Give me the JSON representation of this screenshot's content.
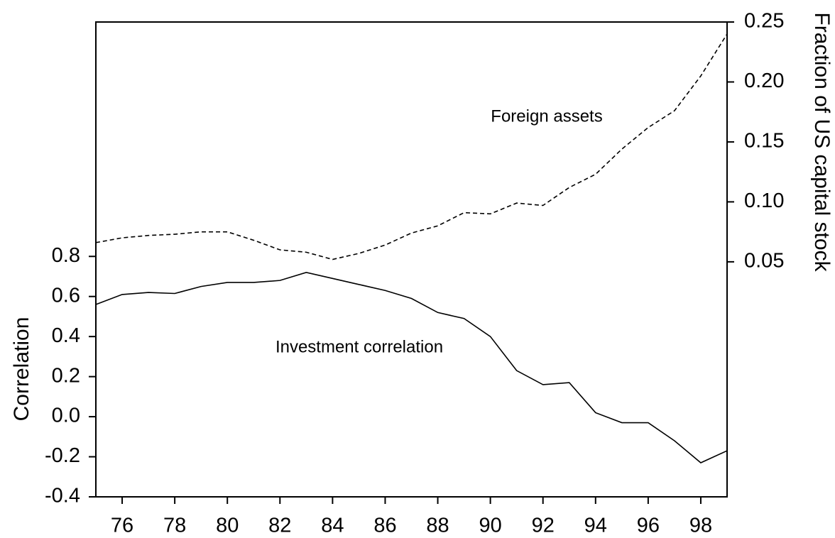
{
  "chart_data": {
    "type": "line",
    "x": [
      75,
      76,
      77,
      78,
      79,
      80,
      81,
      82,
      83,
      84,
      85,
      86,
      87,
      88,
      89,
      90,
      91,
      92,
      93,
      94,
      95,
      96,
      97,
      98,
      99
    ],
    "series": [
      {
        "name": "Investment correlation",
        "color": "#000000",
        "dash": "solid",
        "values": [
          0.56,
          0.61,
          0.62,
          0.615,
          0.65,
          0.67,
          0.67,
          0.68,
          0.72,
          0.69,
          0.66,
          0.63,
          0.59,
          0.52,
          0.49,
          0.4,
          0.23,
          0.16,
          0.17,
          0.02,
          -0.03,
          -0.03,
          -0.12,
          -0.23,
          -0.17
        ]
      },
      {
        "name": "Foreign assets",
        "color": "#000000",
        "dash": "dashed",
        "axis": "y2",
        "values": [
          0.066,
          0.07,
          0.072,
          0.073,
          0.075,
          0.075,
          0.068,
          0.06,
          0.058,
          0.052,
          0.057,
          0.064,
          0.074,
          0.08,
          0.091,
          0.09,
          0.099,
          0.097,
          0.112,
          0.123,
          0.144,
          0.162,
          0.176,
          0.205,
          0.24
        ]
      }
    ],
    "ylabel": "Correlation",
    "y2label": "Fraction of US capital stock",
    "xlim": [
      75,
      99
    ],
    "xticks": [
      76,
      78,
      80,
      82,
      84,
      86,
      88,
      90,
      92,
      94,
      96,
      98
    ],
    "ylim": [
      -0.4,
      1.97
    ],
    "yticks": [
      -0.4,
      -0.2,
      {
        "value": 0,
        "label": "0.0"
      },
      0.2,
      0.4,
      0.6,
      0.8
    ],
    "y2lim": [
      -0.146,
      0.25
    ],
    "y2ticks": [
      0.05,
      {
        "value": 0.1,
        "label": "0.10"
      },
      0.15,
      {
        "value": 0.2,
        "label": "0.20"
      },
      0.25
    ],
    "grid": false
  }
}
